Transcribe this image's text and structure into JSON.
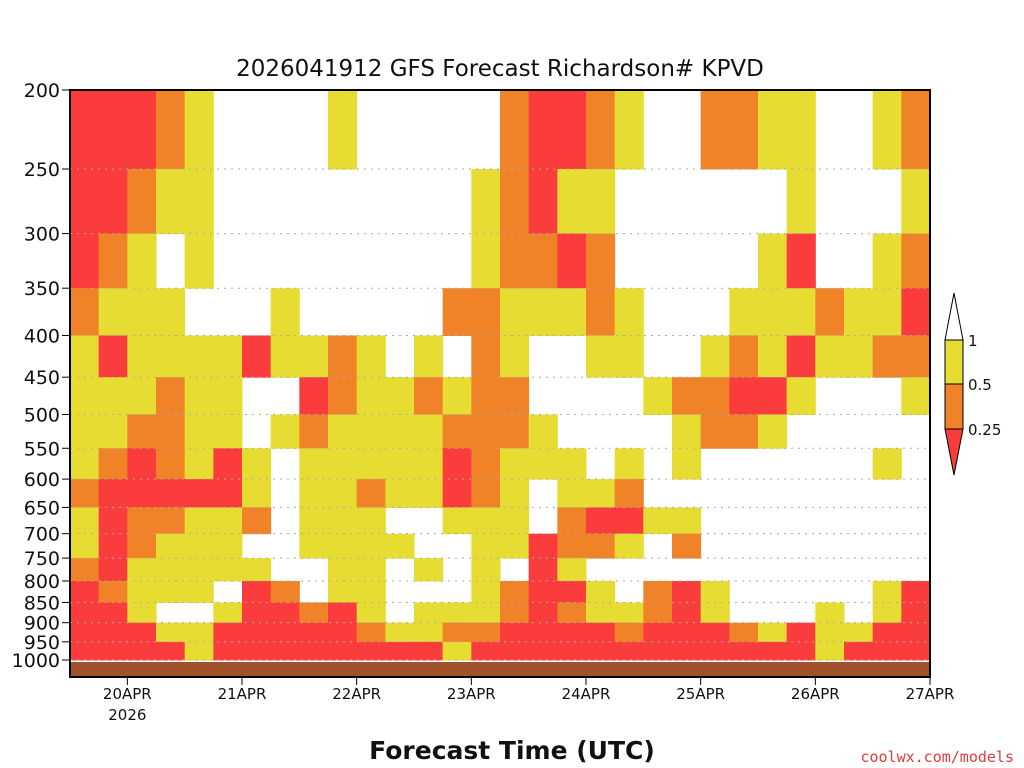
{
  "chart_data": {
    "type": "heatmap",
    "title": "2026041912 GFS Forecast Richardson# KPVD",
    "xlabel": "Forecast Time (UTC)",
    "ylabel": "",
    "credit": "coolwx.com/models",
    "x_ticks": [
      {
        "label": "20APR",
        "sub": "2026",
        "day": 1
      },
      {
        "label": "21APR",
        "day": 2
      },
      {
        "label": "22APR",
        "day": 3
      },
      {
        "label": "23APR",
        "day": 4
      },
      {
        "label": "24APR",
        "day": 5
      },
      {
        "label": "25APR",
        "day": 6
      },
      {
        "label": "26APR",
        "day": 7
      },
      {
        "label": "27APR",
        "day": 8
      }
    ],
    "xlim_days_since_19APR00Z": [
      0.5,
      8.0
    ],
    "time_step_hours": 6,
    "y_scale": "log",
    "ylim": [
      1050,
      200
    ],
    "y_ticks": [
      200,
      250,
      300,
      350,
      400,
      450,
      500,
      550,
      600,
      650,
      700,
      750,
      800,
      850,
      900,
      950,
      1000
    ],
    "grid": "dotted horizontal at y ticks",
    "legend": {
      "placement": "right",
      "bins": [
        {
          "range": "> 1",
          "color": "#ffffff"
        },
        {
          "range": "0.5 - 1",
          "color": "#e6dc32"
        },
        {
          "range": "0.25 - 0.5",
          "color": "#f08228"
        },
        {
          "range": "< 0.25",
          "color": "#fa3c3c"
        }
      ],
      "labels": [
        "1",
        "0.5",
        "0.25"
      ]
    },
    "ground_color": "#a0522d",
    "category_codes": "0: Ri>1, 1: 0.5-1, 2: 0.25-0.5, 3: <0.25",
    "level_bands": [
      [
        200,
        250
      ],
      [
        250,
        300
      ],
      [
        300,
        350
      ],
      [
        350,
        400
      ],
      [
        400,
        450
      ],
      [
        450,
        500
      ],
      [
        500,
        550
      ],
      [
        550,
        600
      ],
      [
        600,
        650
      ],
      [
        650,
        700
      ],
      [
        700,
        750
      ],
      [
        750,
        800
      ],
      [
        800,
        850
      ],
      [
        850,
        900
      ],
      [
        900,
        950
      ],
      [
        950,
        1000
      ]
    ],
    "values": [
      [
        3,
        3,
        3,
        2,
        1,
        0,
        0,
        0,
        0,
        1,
        0,
        0,
        0,
        0,
        0,
        2,
        3,
        3,
        2,
        1,
        0,
        0,
        2,
        2,
        1,
        1,
        0,
        0,
        1,
        2
      ],
      [
        3,
        3,
        2,
        1,
        1,
        0,
        0,
        0,
        0,
        0,
        0,
        0,
        0,
        0,
        1,
        2,
        3,
        1,
        1,
        0,
        0,
        0,
        0,
        0,
        0,
        1,
        0,
        0,
        0,
        1
      ],
      [
        3,
        2,
        1,
        0,
        1,
        0,
        0,
        0,
        0,
        0,
        0,
        0,
        0,
        0,
        1,
        2,
        2,
        3,
        2,
        0,
        0,
        0,
        0,
        0,
        1,
        3,
        0,
        0,
        1,
        2
      ],
      [
        2,
        1,
        1,
        1,
        0,
        0,
        0,
        1,
        0,
        0,
        0,
        0,
        0,
        2,
        2,
        1,
        1,
        1,
        2,
        1,
        0,
        0,
        0,
        1,
        1,
        1,
        2,
        1,
        1,
        3
      ],
      [
        1,
        3,
        1,
        1,
        1,
        1,
        3,
        1,
        1,
        2,
        1,
        0,
        1,
        0,
        2,
        1,
        0,
        0,
        1,
        1,
        0,
        0,
        1,
        2,
        1,
        3,
        1,
        1,
        2,
        2
      ],
      [
        1,
        1,
        1,
        2,
        1,
        1,
        0,
        0,
        3,
        2,
        1,
        1,
        2,
        1,
        2,
        2,
        0,
        0,
        0,
        0,
        1,
        2,
        2,
        3,
        3,
        1,
        0,
        0,
        0,
        1
      ],
      [
        1,
        1,
        2,
        2,
        1,
        1,
        0,
        1,
        2,
        1,
        1,
        1,
        1,
        2,
        2,
        2,
        1,
        0,
        0,
        0,
        0,
        1,
        2,
        2,
        1,
        0,
        0,
        0,
        0,
        0
      ],
      [
        1,
        2,
        3,
        2,
        1,
        3,
        1,
        0,
        1,
        1,
        1,
        1,
        1,
        3,
        2,
        1,
        1,
        1,
        0,
        1,
        0,
        1,
        0,
        0,
        0,
        0,
        0,
        0,
        1,
        0
      ],
      [
        2,
        3,
        3,
        3,
        3,
        3,
        1,
        0,
        1,
        1,
        2,
        1,
        1,
        3,
        2,
        1,
        0,
        1,
        1,
        2,
        0,
        0,
        0,
        0,
        0,
        0,
        0,
        0,
        0,
        0
      ],
      [
        1,
        3,
        2,
        2,
        1,
        1,
        2,
        0,
        1,
        1,
        1,
        0,
        0,
        1,
        1,
        1,
        0,
        2,
        3,
        3,
        1,
        1,
        0,
        0,
        0,
        0,
        0,
        0,
        0,
        0
      ],
      [
        1,
        3,
        2,
        1,
        1,
        1,
        0,
        0,
        1,
        1,
        1,
        1,
        0,
        0,
        1,
        1,
        3,
        2,
        2,
        1,
        0,
        2,
        0,
        0,
        0,
        0,
        0,
        0,
        0,
        0
      ],
      [
        2,
        3,
        1,
        1,
        1,
        1,
        1,
        0,
        0,
        1,
        1,
        0,
        1,
        0,
        1,
        0,
        3,
        1,
        0,
        0,
        0,
        0,
        0,
        0,
        0,
        0,
        0,
        0,
        0,
        0
      ],
      [
        3,
        2,
        1,
        1,
        1,
        0,
        3,
        2,
        0,
        1,
        1,
        0,
        0,
        0,
        1,
        2,
        3,
        3,
        1,
        0,
        2,
        3,
        1,
        0,
        0,
        0,
        0,
        0,
        1,
        3
      ],
      [
        3,
        3,
        1,
        0,
        0,
        1,
        3,
        3,
        2,
        3,
        1,
        0,
        1,
        1,
        1,
        2,
        3,
        2,
        1,
        1,
        2,
        3,
        1,
        0,
        0,
        0,
        1,
        0,
        1,
        3
      ],
      [
        3,
        3,
        3,
        1,
        1,
        3,
        3,
        3,
        3,
        3,
        2,
        1,
        1,
        2,
        2,
        3,
        3,
        3,
        3,
        2,
        3,
        3,
        3,
        2,
        1,
        3,
        1,
        1,
        3,
        3
      ],
      [
        3,
        3,
        3,
        3,
        1,
        3,
        3,
        3,
        3,
        3,
        3,
        3,
        3,
        1,
        3,
        3,
        3,
        3,
        3,
        3,
        3,
        3,
        3,
        3,
        3,
        3,
        1,
        3,
        3,
        3
      ]
    ]
  }
}
